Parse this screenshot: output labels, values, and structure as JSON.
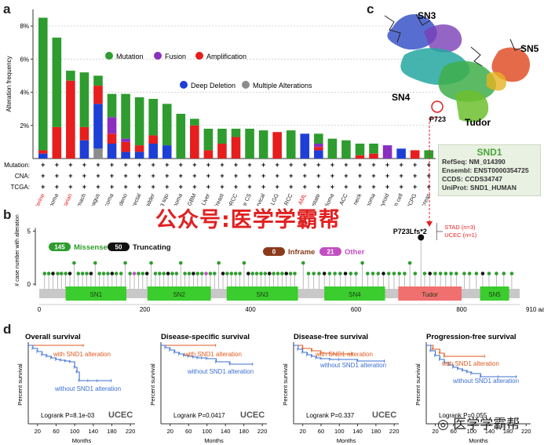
{
  "panels": {
    "a": "a",
    "b": "b",
    "c": "c",
    "d": "d"
  },
  "panel_a": {
    "ylabel": "Alteration frequency",
    "yticks": [
      "2%",
      "4%",
      "6%",
      "8%"
    ],
    "legend": {
      "mutation": "Mutation",
      "fusion": "Fusion",
      "amplification": "Amplification",
      "deep_deletion": "Deep Deletion",
      "multiple": "Multiple Alterations"
    },
    "row_labels": {
      "mutation": "Mutation:",
      "cna": "CNA:",
      "tcga": "TCGA:"
    },
    "plus": "+"
  },
  "colors": {
    "mutation": "#2e9c2e",
    "fusion": "#8a2fc0",
    "amplification": "#e61e1e",
    "deep_deletion": "#1e3fd6",
    "multiple": "#8c8c8c",
    "tudor": "#f07070",
    "domain": "#3bcc2e",
    "km_with": "#e05a1e",
    "km_without": "#3b6fd0"
  },
  "chart_data": [
    {
      "type": "bar",
      "title": "",
      "ylabel": "Alteration frequency",
      "ylim": [
        0,
        9
      ],
      "categories": [
        "Uterine",
        "Melanoma",
        "Ovarian",
        "Stomach",
        "Esophagus",
        "Sarcoma",
        "Lung adeno",
        "Colorectal",
        "Bladder",
        "Lung squ",
        "Cholangiocarcinoma",
        "GBM",
        "Liver",
        "Breast",
        "pRCC",
        "Uterine CS",
        "Cervical",
        "LGG",
        "Chromophobe RCC",
        "AML",
        "Prostate",
        "Mesothelioma",
        "ACC",
        "Head & neck",
        "Thymoma",
        "Thyroid",
        "Testicular germ cell",
        "PCPG",
        "Pancreas"
      ],
      "highlight_categories": [
        "Uterine",
        "Ovarian",
        "AML"
      ],
      "series": [
        {
          "name": "Multiple Alterations",
          "values": [
            0,
            0,
            0,
            0,
            0.6,
            0,
            0,
            0,
            0,
            0,
            0,
            0,
            0,
            0,
            0,
            0,
            0,
            0,
            0,
            0,
            0,
            0,
            0,
            0,
            0,
            0,
            0,
            0,
            0
          ]
        },
        {
          "name": "Deep Deletion",
          "values": [
            0.3,
            0,
            0,
            1.1,
            2.7,
            0.9,
            0.4,
            0.4,
            0.9,
            0.8,
            0,
            0,
            0,
            0,
            0,
            0,
            0,
            0,
            0,
            1.5,
            0.5,
            0,
            0,
            0,
            0,
            0,
            0.6,
            0,
            0
          ]
        },
        {
          "name": "Amplification",
          "values": [
            0.2,
            1.9,
            4.7,
            0.8,
            1.1,
            0.6,
            0.6,
            0.4,
            0.5,
            0,
            0,
            2,
            0.5,
            0.9,
            1.3,
            0,
            0,
            1.6,
            0,
            0,
            0.2,
            0,
            0,
            0.2,
            0.3,
            0,
            0,
            0.5,
            0
          ]
        },
        {
          "name": "Fusion",
          "values": [
            0,
            0,
            0,
            0,
            0,
            1,
            0.2,
            0,
            0,
            0,
            0,
            0,
            0,
            0,
            0,
            0,
            0,
            0,
            0,
            0,
            0.2,
            0,
            0,
            0,
            0,
            0.8,
            0,
            0,
            0
          ]
        },
        {
          "name": "Mutation",
          "values": [
            8,
            5.4,
            0.6,
            3.3,
            0.6,
            1.4,
            2.7,
            2.9,
            2.2,
            2.5,
            2.7,
            0.4,
            1.3,
            0.9,
            0.5,
            1.8,
            1.7,
            0,
            1.7,
            0,
            0.6,
            1.2,
            1.1,
            0.7,
            0.6,
            0,
            0,
            0,
            0.5
          ]
        }
      ]
    },
    {
      "type": "lollipop",
      "ylabel": "# case number with alteration",
      "yticks": [
        0,
        5
      ],
      "xlim": [
        0,
        910
      ],
      "xticks": [
        0,
        200,
        400,
        600,
        800
      ],
      "xunit": "910 aa",
      "domains": [
        {
          "name": "SN1",
          "start": 50,
          "end": 165
        },
        {
          "name": "SN2",
          "start": 205,
          "end": 325
        },
        {
          "name": "SN3",
          "start": 355,
          "end": 490
        },
        {
          "name": "SN4",
          "start": 540,
          "end": 655
        },
        {
          "name": "Tudor",
          "start": 680,
          "end": 800
        },
        {
          "name": "SN5",
          "start": 835,
          "end": 890
        }
      ],
      "legend": [
        {
          "count": "145",
          "label": "Missense"
        },
        {
          "count": "50",
          "label": "Truncating"
        },
        {
          "count": "0",
          "label": "Inframe"
        },
        {
          "count": "21",
          "label": "Other"
        }
      ],
      "hotspot": {
        "label": "P723Lfs*2",
        "position": 723,
        "count": 5,
        "annotations": [
          "STAD (n=3)",
          "UCEC (n=1)"
        ]
      },
      "mutations": [
        {
          "pos": 10,
          "n": 1,
          "type": "Missense"
        },
        {
          "pos": 18,
          "n": 1,
          "type": "Missense"
        },
        {
          "pos": 26,
          "n": 1,
          "type": "Truncating"
        },
        {
          "pos": 35,
          "n": 1,
          "type": "Missense"
        },
        {
          "pos": 42,
          "n": 1,
          "type": "Missense"
        },
        {
          "pos": 50,
          "n": 1,
          "type": "Missense"
        },
        {
          "pos": 58,
          "n": 1,
          "type": "Truncating"
        },
        {
          "pos": 66,
          "n": 2,
          "type": "Missense"
        },
        {
          "pos": 74,
          "n": 1,
          "type": "Missense"
        },
        {
          "pos": 82,
          "n": 1,
          "type": "Missense"
        },
        {
          "pos": 90,
          "n": 1,
          "type": "Missense"
        },
        {
          "pos": 98,
          "n": 1,
          "type": "Truncating"
        },
        {
          "pos": 106,
          "n": 2,
          "type": "Missense"
        },
        {
          "pos": 114,
          "n": 1,
          "type": "Missense"
        },
        {
          "pos": 122,
          "n": 1,
          "type": "Missense"
        },
        {
          "pos": 130,
          "n": 1,
          "type": "Missense"
        },
        {
          "pos": 138,
          "n": 1,
          "type": "Truncating"
        },
        {
          "pos": 146,
          "n": 1,
          "type": "Missense"
        },
        {
          "pos": 155,
          "n": 1,
          "type": "Missense"
        },
        {
          "pos": 163,
          "n": 2,
          "type": "Missense"
        },
        {
          "pos": 172,
          "n": 1,
          "type": "Missense"
        },
        {
          "pos": 180,
          "n": 1,
          "type": "Other"
        },
        {
          "pos": 188,
          "n": 1,
          "type": "Missense"
        },
        {
          "pos": 196,
          "n": 1,
          "type": "Missense"
        },
        {
          "pos": 204,
          "n": 1,
          "type": "Truncating"
        },
        {
          "pos": 212,
          "n": 2,
          "type": "Missense"
        },
        {
          "pos": 220,
          "n": 1,
          "type": "Missense"
        },
        {
          "pos": 228,
          "n": 1,
          "type": "Missense"
        },
        {
          "pos": 236,
          "n": 1,
          "type": "Missense"
        },
        {
          "pos": 244,
          "n": 1,
          "type": "Truncating"
        },
        {
          "pos": 252,
          "n": 1,
          "type": "Missense"
        },
        {
          "pos": 260,
          "n": 1,
          "type": "Missense"
        },
        {
          "pos": 268,
          "n": 2,
          "type": "Missense"
        },
        {
          "pos": 276,
          "n": 1,
          "type": "Missense"
        },
        {
          "pos": 284,
          "n": 1,
          "type": "Missense"
        },
        {
          "pos": 292,
          "n": 1,
          "type": "Truncating"
        },
        {
          "pos": 300,
          "n": 1,
          "type": "Missense"
        },
        {
          "pos": 308,
          "n": 1,
          "type": "Missense"
        },
        {
          "pos": 316,
          "n": 1,
          "type": "Other"
        },
        {
          "pos": 324,
          "n": 1,
          "type": "Missense"
        },
        {
          "pos": 332,
          "n": 1,
          "type": "Missense"
        },
        {
          "pos": 340,
          "n": 2,
          "type": "Missense"
        },
        {
          "pos": 348,
          "n": 1,
          "type": "Truncating"
        },
        {
          "pos": 356,
          "n": 1,
          "type": "Missense"
        },
        {
          "pos": 364,
          "n": 1,
          "type": "Missense"
        },
        {
          "pos": 372,
          "n": 1,
          "type": "Missense"
        },
        {
          "pos": 380,
          "n": 1,
          "type": "Missense"
        },
        {
          "pos": 388,
          "n": 2,
          "type": "Missense"
        },
        {
          "pos": 396,
          "n": 1,
          "type": "Truncating"
        },
        {
          "pos": 404,
          "n": 1,
          "type": "Missense"
        },
        {
          "pos": 412,
          "n": 1,
          "type": "Missense"
        },
        {
          "pos": 420,
          "n": 1,
          "type": "Missense"
        },
        {
          "pos": 428,
          "n": 1,
          "type": "Missense"
        },
        {
          "pos": 436,
          "n": 1,
          "type": "Truncating"
        },
        {
          "pos": 444,
          "n": 1,
          "type": "Missense"
        },
        {
          "pos": 452,
          "n": 1,
          "type": "Missense"
        },
        {
          "pos": 460,
          "n": 1,
          "type": "Missense"
        },
        {
          "pos": 468,
          "n": 1,
          "type": "Truncating"
        },
        {
          "pos": 476,
          "n": 1,
          "type": "Missense"
        },
        {
          "pos": 484,
          "n": 1,
          "type": "Missense"
        },
        {
          "pos": 500,
          "n": 2,
          "type": "Missense"
        },
        {
          "pos": 510,
          "n": 1,
          "type": "Missense"
        },
        {
          "pos": 520,
          "n": 1,
          "type": "Missense"
        },
        {
          "pos": 530,
          "n": 1,
          "type": "Missense"
        },
        {
          "pos": 540,
          "n": 1,
          "type": "Truncating"
        },
        {
          "pos": 550,
          "n": 1,
          "type": "Missense"
        },
        {
          "pos": 560,
          "n": 1,
          "type": "Missense"
        },
        {
          "pos": 570,
          "n": 1,
          "type": "Missense"
        },
        {
          "pos": 580,
          "n": 1,
          "type": "Truncating"
        },
        {
          "pos": 590,
          "n": 1,
          "type": "Missense"
        },
        {
          "pos": 600,
          "n": 1,
          "type": "Missense"
        },
        {
          "pos": 612,
          "n": 2,
          "type": "Missense"
        },
        {
          "pos": 622,
          "n": 1,
          "type": "Missense"
        },
        {
          "pos": 632,
          "n": 1,
          "type": "Missense"
        },
        {
          "pos": 642,
          "n": 1,
          "type": "Missense"
        },
        {
          "pos": 652,
          "n": 1,
          "type": "Truncating"
        },
        {
          "pos": 662,
          "n": 1,
          "type": "Missense"
        },
        {
          "pos": 672,
          "n": 1,
          "type": "Missense"
        },
        {
          "pos": 682,
          "n": 1,
          "type": "Missense"
        },
        {
          "pos": 692,
          "n": 1,
          "type": "Missense"
        },
        {
          "pos": 702,
          "n": 2,
          "type": "Missense"
        },
        {
          "pos": 712,
          "n": 1,
          "type": "Missense"
        },
        {
          "pos": 730,
          "n": 1,
          "type": "Missense"
        },
        {
          "pos": 740,
          "n": 1,
          "type": "Truncating"
        },
        {
          "pos": 750,
          "n": 1,
          "type": "Missense"
        },
        {
          "pos": 760,
          "n": 1,
          "type": "Missense"
        },
        {
          "pos": 770,
          "n": 1,
          "type": "Missense"
        },
        {
          "pos": 780,
          "n": 1,
          "type": "Missense"
        },
        {
          "pos": 790,
          "n": 1,
          "type": "Missense"
        },
        {
          "pos": 805,
          "n": 1,
          "type": "Missense"
        },
        {
          "pos": 815,
          "n": 1,
          "type": "Missense"
        },
        {
          "pos": 828,
          "n": 1,
          "type": "Missense"
        },
        {
          "pos": 840,
          "n": 1,
          "type": "Truncating"
        },
        {
          "pos": 852,
          "n": 1,
          "type": "Missense"
        },
        {
          "pos": 866,
          "n": 1,
          "type": "Missense"
        },
        {
          "pos": 880,
          "n": 1,
          "type": "Missense"
        },
        {
          "pos": 895,
          "n": 1,
          "type": "Missense"
        }
      ]
    },
    {
      "type": "line",
      "title": "Overall survival",
      "xlabel": "Months",
      "ylabel": "Percent survival",
      "xticks": [
        20,
        60,
        100,
        140,
        180,
        220
      ],
      "xlim": [
        0,
        230
      ],
      "ylim": [
        0,
        1
      ],
      "stat": "Logrank P=8.1e-03",
      "badge": "UCEC",
      "series": [
        {
          "name": "with SND1 alteration",
          "x": [
            0,
            120
          ],
          "y": [
            1,
            1
          ]
        },
        {
          "name": "without SND1 alteration",
          "x": [
            0,
            10,
            20,
            30,
            40,
            50,
            60,
            70,
            80,
            90,
            100,
            105,
            110,
            130,
            150,
            180
          ],
          "y": [
            1,
            0.96,
            0.92,
            0.88,
            0.86,
            0.84,
            0.82,
            0.81,
            0.8,
            0.79,
            0.72,
            0.66,
            0.55,
            0.55,
            0.55,
            0.55
          ]
        }
      ]
    },
    {
      "type": "line",
      "title": "Disease-specific survival",
      "xlabel": "Months",
      "ylabel": "Percent survival",
      "xticks": [
        20,
        60,
        100,
        140,
        180,
        220
      ],
      "xlim": [
        0,
        230
      ],
      "ylim": [
        0,
        1
      ],
      "stat": "Logrank P=0.0417",
      "badge": "UCEC",
      "series": [
        {
          "name": "with SND1 alteration",
          "x": [
            0,
            120
          ],
          "y": [
            1,
            1
          ]
        },
        {
          "name": "without SND1 alteration",
          "x": [
            0,
            10,
            20,
            30,
            40,
            50,
            60,
            70,
            80,
            90,
            100,
            120,
            150,
            200
          ],
          "y": [
            1,
            0.97,
            0.94,
            0.91,
            0.89,
            0.87,
            0.86,
            0.85,
            0.84,
            0.84,
            0.83,
            0.79,
            0.76,
            0.76
          ]
        }
      ]
    },
    {
      "type": "line",
      "title": "Disease-free  survival",
      "xlabel": "Months",
      "ylabel": "Percent survival",
      "xticks": [
        20,
        60,
        100,
        140,
        180,
        220
      ],
      "xlim": [
        0,
        230
      ],
      "ylim": [
        0,
        1
      ],
      "stat": "Logrank P=0.337",
      "badge": "UCEC",
      "series": [
        {
          "name": "with SND1 alteration",
          "x": [
            0,
            20,
            40,
            60,
            80,
            130
          ],
          "y": [
            1,
            0.96,
            0.93,
            0.9,
            0.89,
            0.89
          ]
        },
        {
          "name": "without SND1 alteration",
          "x": [
            0,
            10,
            20,
            30,
            40,
            50,
            60,
            80,
            100,
            140,
            200
          ],
          "y": [
            1,
            0.95,
            0.91,
            0.88,
            0.86,
            0.84,
            0.83,
            0.82,
            0.82,
            0.8,
            0.8
          ]
        }
      ]
    },
    {
      "type": "line",
      "title": "Progression-free  survival",
      "xlabel": "Months",
      "ylabel": "Percent survival",
      "xticks": [
        20,
        60,
        100,
        140,
        180,
        220
      ],
      "xlim": [
        0,
        230
      ],
      "ylim": [
        0,
        1
      ],
      "stat": "Logrank P=0.055",
      "badge": "UCEC",
      "series": [
        {
          "name": "with SND1 alteration",
          "x": [
            0,
            15,
            30,
            40,
            130
          ],
          "y": [
            1,
            0.95,
            0.9,
            0.86,
            0.86
          ]
        },
        {
          "name": "without SND1 alteration",
          "x": [
            0,
            10,
            20,
            30,
            40,
            50,
            60,
            70,
            80,
            90,
            100,
            120,
            160,
            200
          ],
          "y": [
            1,
            0.93,
            0.87,
            0.82,
            0.78,
            0.75,
            0.72,
            0.7,
            0.68,
            0.66,
            0.64,
            0.6,
            0.6,
            0.6
          ]
        }
      ]
    }
  ],
  "structure": {
    "labels": [
      "SN3",
      "SN5",
      "SN4",
      "Tudor"
    ],
    "residue": "P723"
  },
  "protein_info": {
    "name": "SND1",
    "refseq": "RefSeq: NM_014390",
    "ensembl": "Ensembl: ENST0000354725",
    "ccds": "CCDS: CCDS34747",
    "uniprot": "UniProt: SND1_HUMAN"
  },
  "watermarks": {
    "center": "公众号:医学学霸帮",
    "logo": "医学学霸帮"
  }
}
